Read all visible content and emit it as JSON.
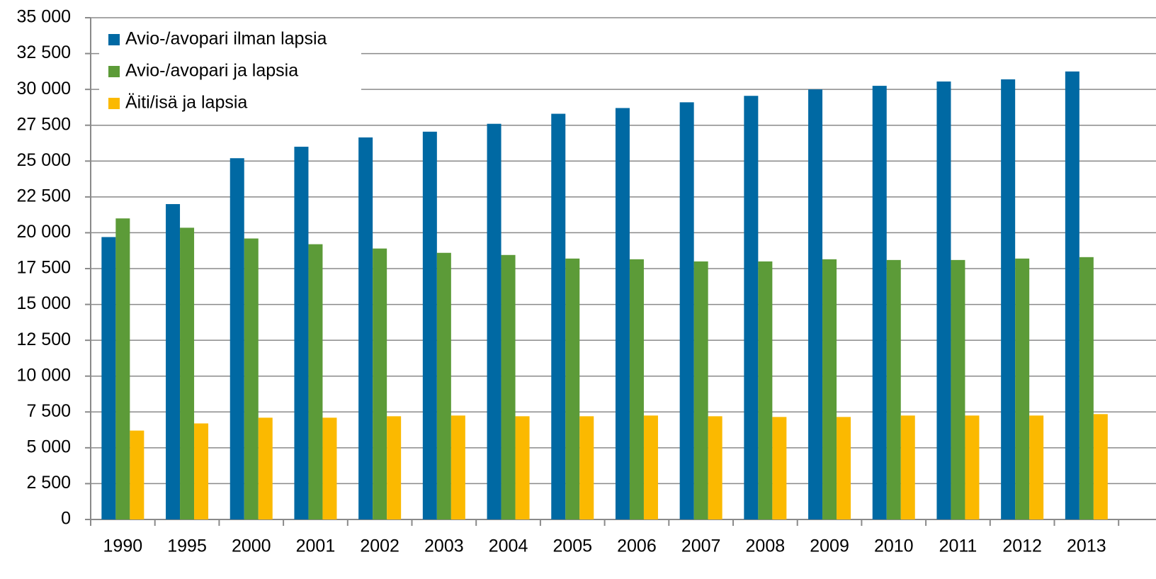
{
  "chart_data": {
    "type": "bar",
    "categories": [
      "1990",
      "1995",
      "2000",
      "2001",
      "2002",
      "2003",
      "2004",
      "2005",
      "2006",
      "2007",
      "2008",
      "2009",
      "2010",
      "2011",
      "2012",
      "2013"
    ],
    "series": [
      {
        "name": "Avio-/avopari ilman lapsia",
        "color": "#0069a3",
        "values": [
          19700,
          22000,
          25200,
          26000,
          26650,
          27050,
          27600,
          28300,
          28700,
          29100,
          29550,
          30000,
          30250,
          30550,
          30700,
          31250
        ]
      },
      {
        "name": "Avio-/avopari ja lapsia",
        "color": "#5c9b38",
        "values": [
          21000,
          20350,
          19600,
          19200,
          18900,
          18600,
          18450,
          18200,
          18150,
          18000,
          18000,
          18150,
          18100,
          18100,
          18200,
          18300
        ]
      },
      {
        "name": "Äiti/isä ja lapsia",
        "color": "#fbb900",
        "values": [
          6200,
          6700,
          7100,
          7100,
          7200,
          7250,
          7200,
          7200,
          7250,
          7200,
          7150,
          7150,
          7250,
          7250,
          7250,
          7350
        ]
      }
    ],
    "ylim": [
      0,
      35000
    ],
    "yticks": [
      0,
      {
        "value": 2500,
        "label": "2 500"
      },
      {
        "value": 5000,
        "label": "5 000"
      },
      {
        "value": 7500,
        "label": "7 500"
      },
      {
        "value": 10000,
        "label": "10 000"
      },
      {
        "value": 12500,
        "label": "12 500"
      },
      {
        "value": 15000,
        "label": "15 000"
      },
      {
        "value": 17500,
        "label": "17 500"
      },
      {
        "value": 20000,
        "label": "20 000"
      },
      {
        "value": 22500,
        "label": "22 500"
      },
      {
        "value": 25000,
        "label": "25 000"
      },
      {
        "value": 27500,
        "label": "27 500"
      },
      {
        "value": 30000,
        "label": "30 000"
      },
      {
        "value": 32500,
        "label": "32 500"
      },
      {
        "value": 35000,
        "label": "35 000"
      }
    ],
    "grid": true,
    "legend": "upper left"
  }
}
